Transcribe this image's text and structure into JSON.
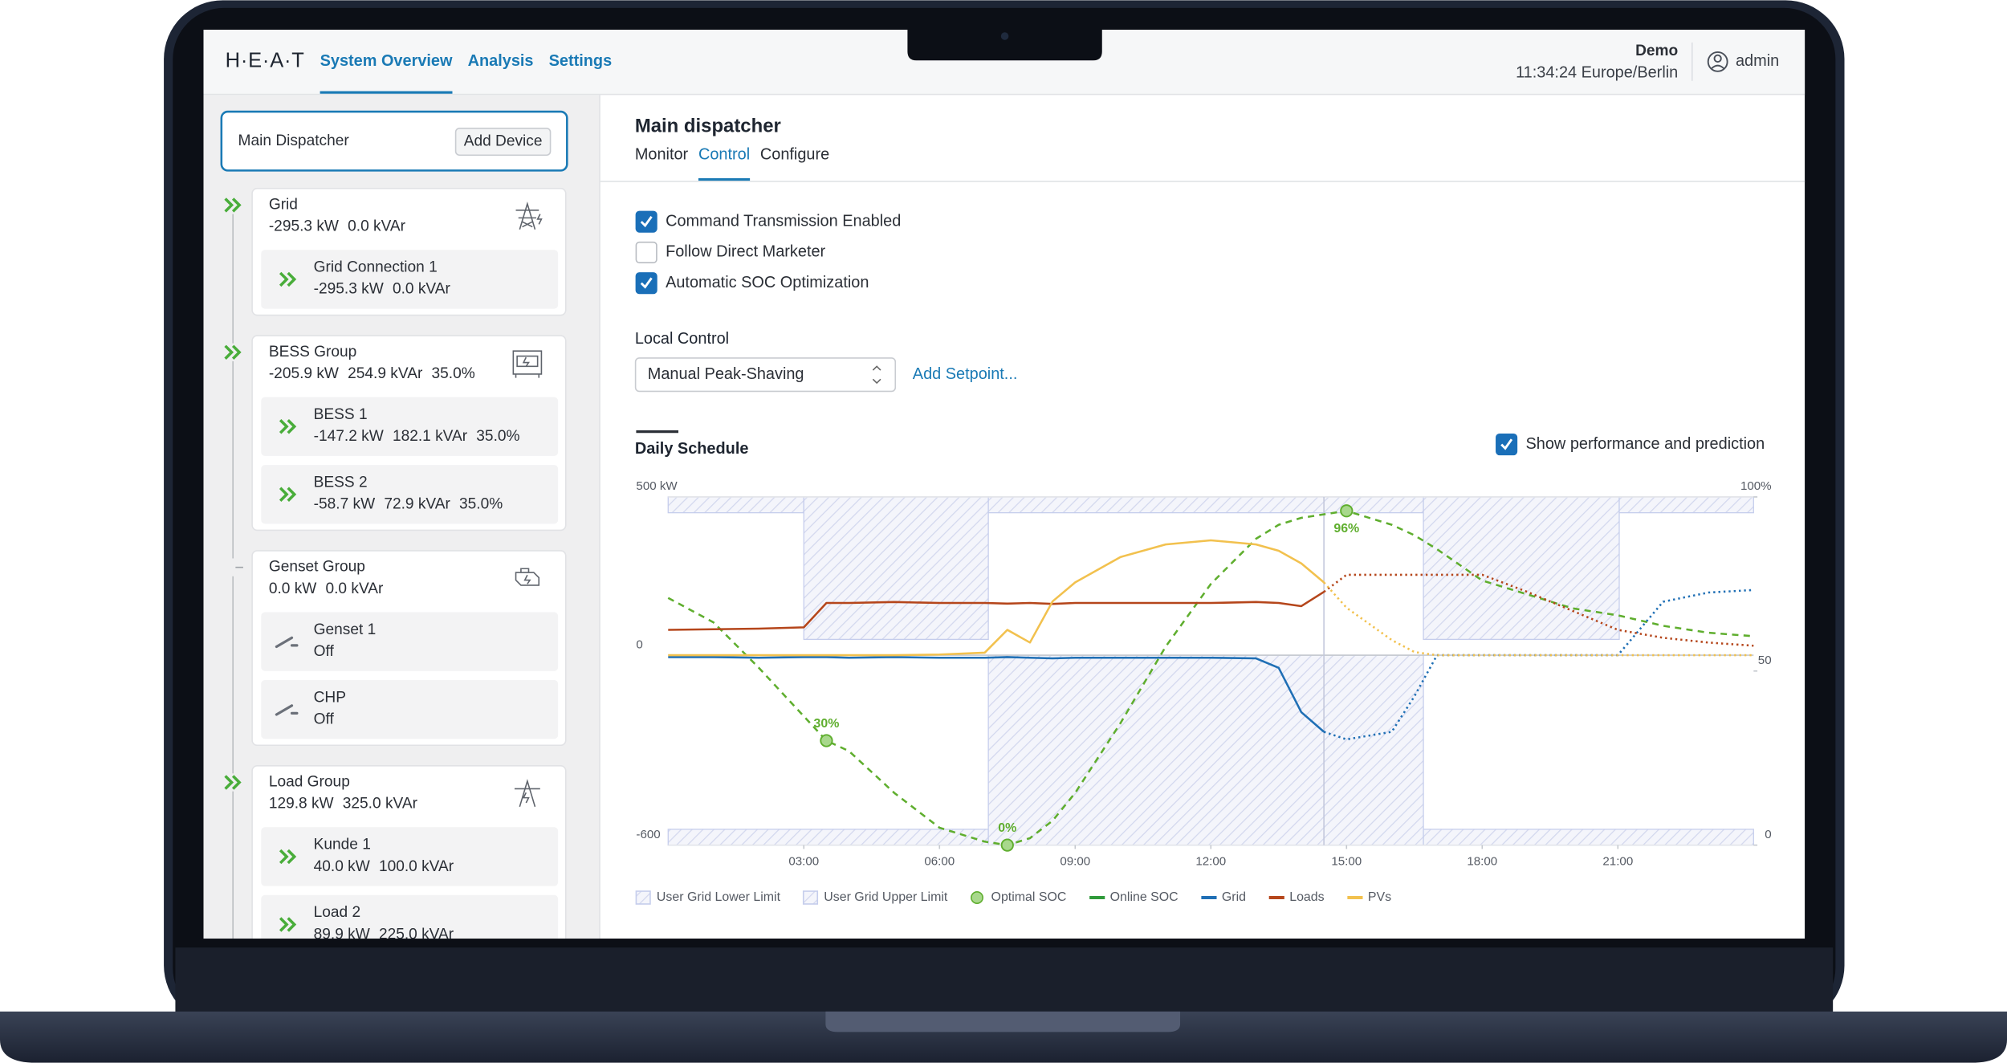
{
  "header": {
    "logo": "H·E·A·T",
    "nav": [
      "System Overview",
      "Analysis",
      "Settings"
    ],
    "active_nav": 0,
    "org": "Demo",
    "time": "11:34:24 Europe/Berlin",
    "user": "admin"
  },
  "sidebar": {
    "title": "Main Dispatcher",
    "button": "Add Device",
    "groups": [
      {
        "name": "Grid",
        "metrics": [
          "-295.3 kW",
          "0.0 kVAr"
        ],
        "icon": "tower",
        "running": true,
        "devices": [
          {
            "name": "Grid Connection 1",
            "metrics": [
              "-295.3 kW",
              "0.0 kVAr"
            ],
            "running": true
          }
        ]
      },
      {
        "name": "BESS Group",
        "metrics": [
          "-205.9 kW",
          "254.9 kVAr",
          "35.0%"
        ],
        "icon": "battery",
        "running": true,
        "devices": [
          {
            "name": "BESS 1",
            "metrics": [
              "-147.2 kW",
              "182.1 kVAr",
              "35.0%"
            ],
            "running": true
          },
          {
            "name": "BESS 2",
            "metrics": [
              "-58.7 kW",
              "72.9 kVAr",
              "35.0%"
            ],
            "running": true
          }
        ]
      },
      {
        "name": "Genset Group",
        "metrics": [
          "0.0 kW",
          "0.0 kVAr"
        ],
        "icon": "engine",
        "running": false,
        "devices": [
          {
            "name": "Genset 1",
            "metrics": [
              "Off"
            ],
            "running": false
          },
          {
            "name": "CHP",
            "metrics": [
              "Off"
            ],
            "running": false
          }
        ]
      },
      {
        "name": "Load Group",
        "metrics": [
          "129.8 kW",
          "325.0 kVAr"
        ],
        "icon": "load",
        "running": true,
        "devices": [
          {
            "name": "Kunde 1",
            "metrics": [
              "40.0 kW",
              "100.0 kVAr"
            ],
            "running": true
          },
          {
            "name": "Load 2",
            "metrics": [
              "89.9 kW",
              "225.0 kVAr"
            ],
            "running": true
          }
        ]
      }
    ]
  },
  "main": {
    "title": "Main dispatcher",
    "tabs": [
      "Monitor",
      "Control",
      "Configure"
    ],
    "active_tab": 1,
    "options": [
      {
        "label": "Command Transmission Enabled",
        "checked": true
      },
      {
        "label": "Follow Direct Marketer",
        "checked": false
      },
      {
        "label": "Automatic SOC Optimization",
        "checked": true
      }
    ],
    "local_control_label": "Local Control",
    "mode": "Manual Peak-Shaving",
    "add_setpoint": "Add Setpoint...",
    "schedule_title": "Daily Schedule",
    "show_prediction": {
      "label": "Show performance and prediction",
      "checked": true
    }
  },
  "chart": {
    "type": "line",
    "xlim": [
      0,
      24
    ],
    "xticks": [
      {
        "value": 3,
        "label": "03:00"
      },
      {
        "value": 6,
        "label": "06:00"
      },
      {
        "value": 9,
        "label": "09:00"
      },
      {
        "value": 12,
        "label": "12:00"
      },
      {
        "value": 15,
        "label": "15:00"
      },
      {
        "value": 18,
        "label": "18:00"
      },
      {
        "value": 21,
        "label": "21:00"
      }
    ],
    "ylim": [
      -600,
      500
    ],
    "yticks": [
      {
        "value": 500,
        "label": "500 kW"
      },
      0,
      -600
    ],
    "y2lim": [
      0,
      100
    ],
    "y2ticks": [
      {
        "value": 100,
        "label": "100%"
      },
      50,
      0
    ],
    "now": 14.5,
    "limits": [
      {
        "name": "User Grid Lower Limit",
        "color": "#c5cdec",
        "side": "lower",
        "segments": [
          {
            "start": 0,
            "end": 7.08,
            "value": -550
          },
          {
            "start": 7.08,
            "end": 16.7,
            "value": 0
          },
          {
            "start": 16.7,
            "end": 24,
            "value": -550
          }
        ]
      },
      {
        "name": "User Grid Upper Limit",
        "color": "#c5cdec",
        "side": "upper",
        "segments": [
          {
            "start": 0,
            "end": 3,
            "value": 450
          },
          {
            "start": 3,
            "end": 7.08,
            "value": 50
          },
          {
            "start": 7.08,
            "end": 16.7,
            "value": 450
          },
          {
            "start": 16.7,
            "end": 21.03,
            "value": 50
          },
          {
            "start": 21.03,
            "end": 24,
            "value": 450
          }
        ]
      }
    ],
    "x": [
      0,
      1,
      2,
      3,
      3.5,
      4,
      5,
      6,
      7,
      7.5,
      8,
      8.5,
      9,
      10,
      11,
      12,
      13,
      13.5,
      14,
      14.5,
      15,
      16,
      16.5,
      17,
      18,
      19,
      20,
      21,
      22,
      23,
      24
    ],
    "series": [
      {
        "name": "Optimal SOC",
        "color": "#5fae2e",
        "axis": "y2",
        "style": "dashed",
        "values": [
          71,
          64,
          51,
          37,
          30,
          27,
          15,
          5,
          1,
          0,
          2,
          7,
          15,
          35,
          57,
          75,
          88,
          92,
          94,
          95,
          96,
          92,
          89,
          85,
          76,
          72,
          68,
          66,
          63,
          61,
          60
        ],
        "markers": [
          {
            "x": 3.5,
            "value": 30,
            "label": "30%"
          },
          {
            "x": 7.5,
            "value": 0,
            "label": "0%"
          },
          {
            "x": 15,
            "value": 96,
            "label": "96%"
          }
        ]
      },
      {
        "name": "Online SOC",
        "color": "#2f9a3a",
        "axis": "y2",
        "values": [
          null,
          null,
          null,
          null,
          null,
          null,
          null,
          null,
          null,
          null,
          null,
          null,
          null,
          null,
          null,
          null,
          null,
          null,
          null,
          null,
          null,
          null,
          null,
          null,
          null,
          null,
          null,
          null,
          null,
          null,
          null
        ]
      },
      {
        "name": "Grid",
        "color": "#1f6fb5",
        "values": [
          -6,
          -6,
          -8,
          -6,
          -6,
          -8,
          -6,
          -8,
          -8,
          -6,
          -8,
          -10,
          -8,
          -8,
          -8,
          -8,
          -10,
          -40,
          -180,
          -242,
          -266,
          -242,
          -130,
          0,
          0,
          0,
          0,
          0,
          169,
          198,
          206
        ]
      },
      {
        "name": "Loads",
        "color": "#b5461b",
        "values": [
          80,
          82,
          84,
          88,
          165,
          165,
          168,
          165,
          165,
          163,
          165,
          162,
          165,
          165,
          165,
          165,
          168,
          165,
          155,
          200,
          254,
          254,
          254,
          254,
          254,
          200,
          140,
          80,
          55,
          40,
          30
        ]
      },
      {
        "name": "PVs",
        "color": "#f2c14e",
        "values": [
          0,
          0,
          0,
          0,
          0,
          0,
          0,
          2,
          8,
          80,
          40,
          170,
          230,
          310,
          350,
          363,
          350,
          330,
          290,
          230,
          150,
          48,
          10,
          0,
          0,
          0,
          0,
          0,
          0,
          0,
          0
        ]
      }
    ]
  }
}
